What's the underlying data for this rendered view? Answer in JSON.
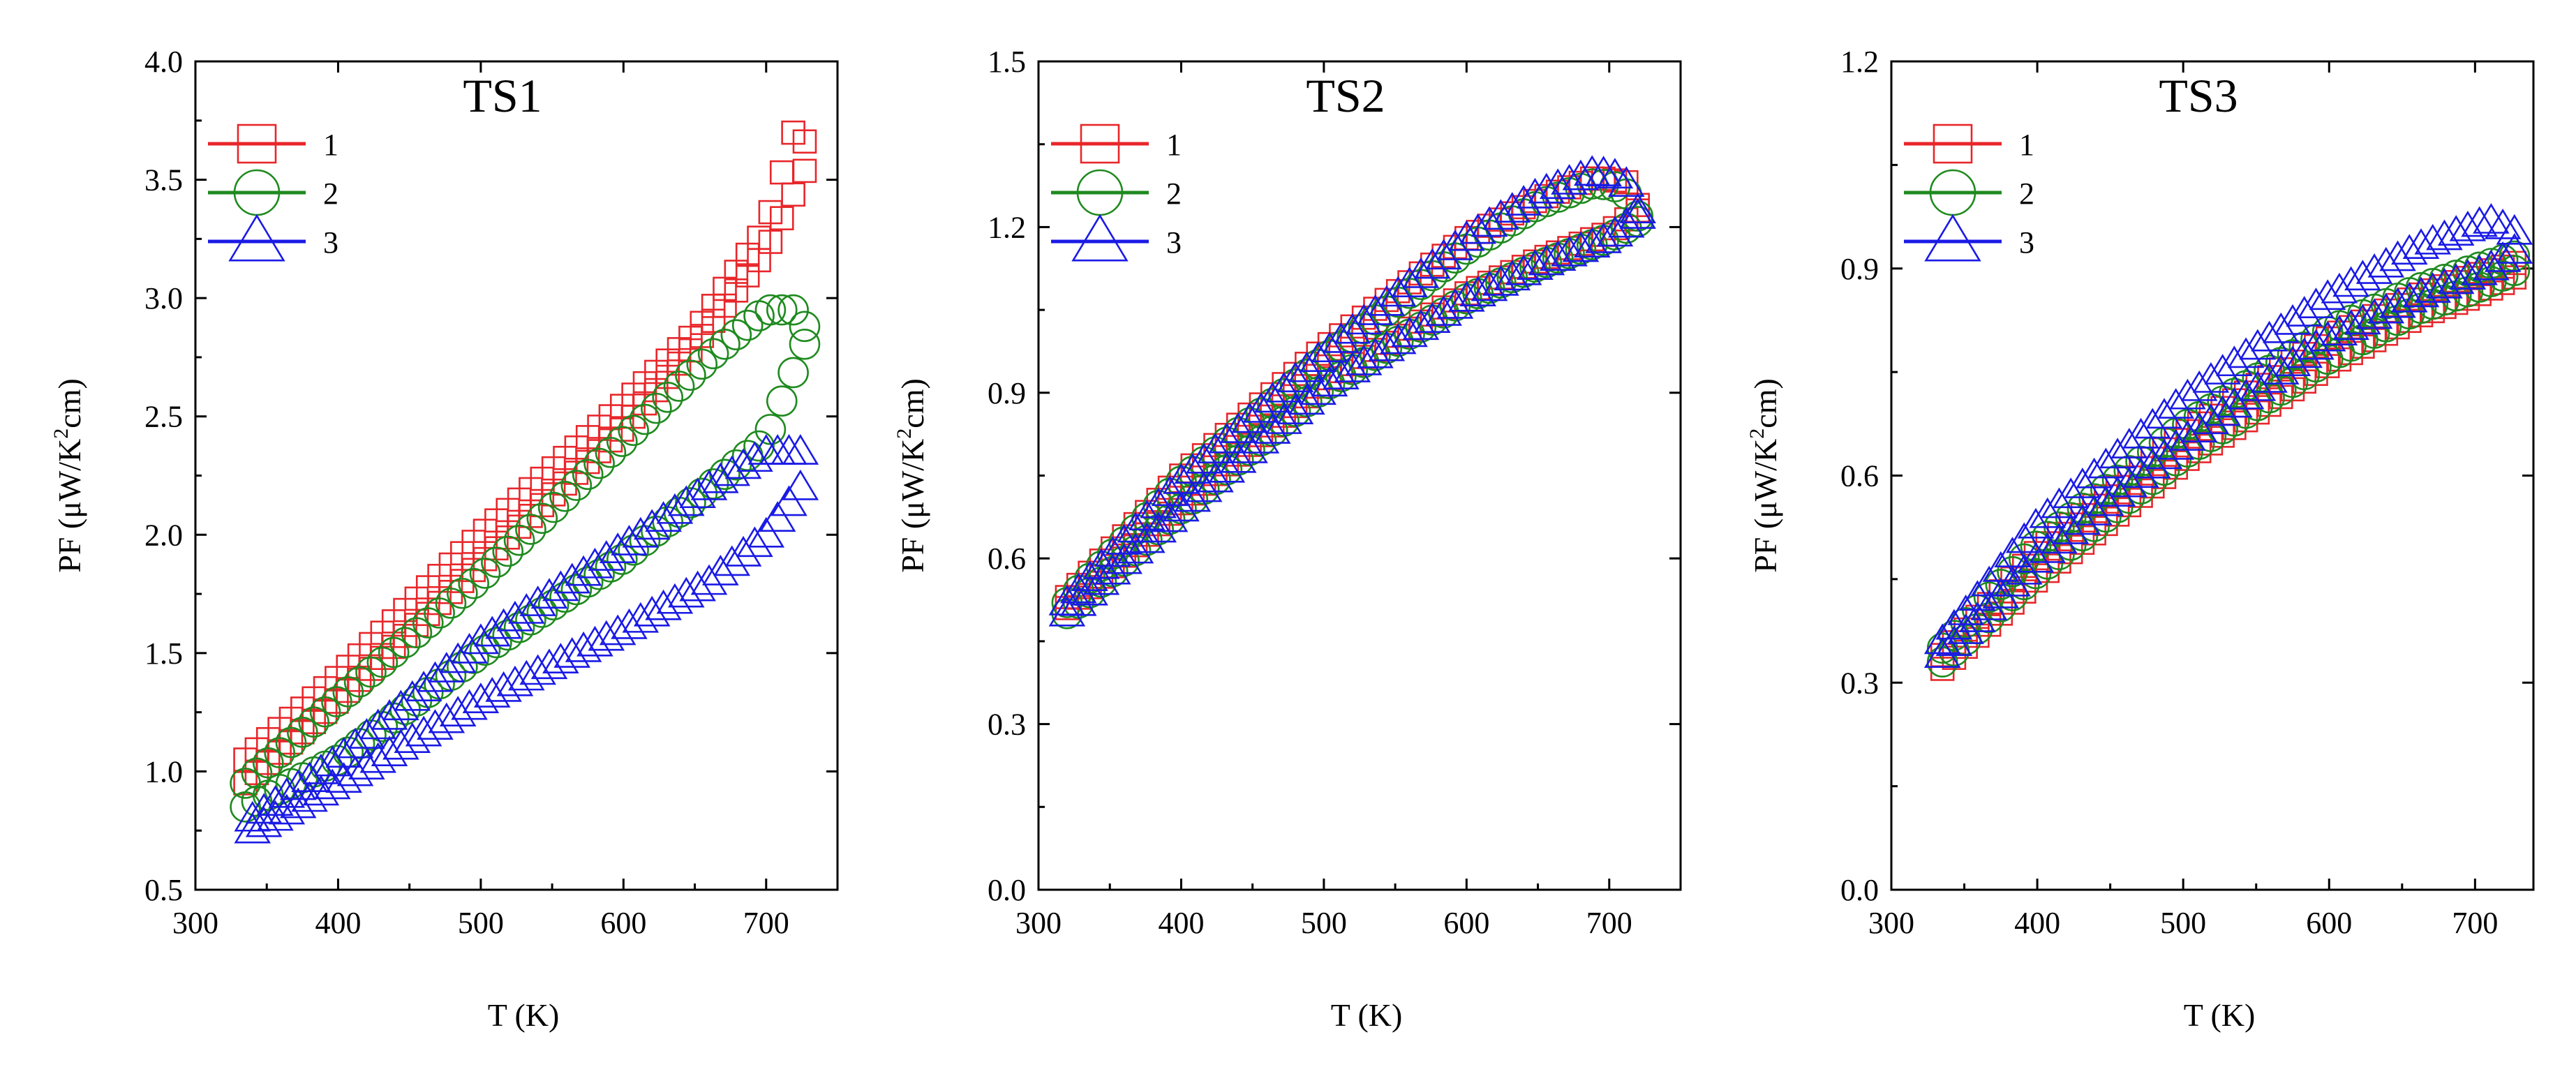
{
  "chart_data": [
    {
      "type": "scatter",
      "title": "TS1",
      "xlabel": "T (K)",
      "ylabel": "PF (μW/K²cm)",
      "ylabel_parts": [
        "PF (μW/K",
        "2",
        "cm)"
      ],
      "xlim": [
        300,
        750
      ],
      "ylim": [
        0.5,
        4.0
      ],
      "xticks": [
        300,
        400,
        500,
        600,
        700
      ],
      "yticks": [
        0.5,
        1.0,
        1.5,
        2.0,
        2.5,
        3.0,
        3.5,
        4.0
      ],
      "ytick_labels": [
        "0.5",
        "1.0",
        "1.5",
        "2.0",
        "2.5",
        "3.0",
        "3.5",
        "4.0"
      ],
      "xtick_labels": [
        "300",
        "400",
        "500",
        "600",
        "700"
      ],
      "legend_location": "top-left",
      "series": [
        {
          "name": "1",
          "marker": "square",
          "color": "#e8262a",
          "upper": [
            [
              335,
              1.05
            ],
            [
              400,
              1.4
            ],
            [
              500,
              2.0
            ],
            [
              600,
              2.55
            ],
            [
              650,
              2.85
            ],
            [
              700,
              3.3
            ],
            [
              720,
              3.72
            ],
            [
              732,
              3.62
            ]
          ],
          "lower": [
            [
              335,
              0.95
            ],
            [
              400,
              1.3
            ],
            [
              500,
              1.88
            ],
            [
              600,
              2.45
            ],
            [
              650,
              2.8
            ],
            [
              700,
              3.2
            ],
            [
              732,
              3.6
            ]
          ]
        },
        {
          "name": "2",
          "marker": "circle",
          "color": "#1f8a1f",
          "upper": [
            [
              335,
              0.95
            ],
            [
              400,
              1.3
            ],
            [
              500,
              1.82
            ],
            [
              600,
              2.4
            ],
            [
              660,
              2.75
            ],
            [
              700,
              2.95
            ],
            [
              720,
              2.95
            ],
            [
              730,
              2.85
            ]
          ],
          "lower": [
            [
              335,
              0.85
            ],
            [
              400,
              1.05
            ],
            [
              500,
              1.5
            ],
            [
              600,
              1.9
            ],
            [
              660,
              2.2
            ],
            [
              700,
              2.4
            ],
            [
              730,
              2.85
            ]
          ]
        },
        {
          "name": "3",
          "marker": "triangle",
          "color": "#1a1ae6",
          "upper": [
            [
              340,
              0.8
            ],
            [
              400,
              1.05
            ],
            [
              500,
              1.55
            ],
            [
              600,
              1.95
            ],
            [
              660,
              2.2
            ],
            [
              700,
              2.35
            ],
            [
              725,
              2.35
            ],
            [
              730,
              2.25
            ]
          ],
          "lower": [
            [
              340,
              0.75
            ],
            [
              400,
              0.95
            ],
            [
              500,
              1.3
            ],
            [
              600,
              1.6
            ],
            [
              660,
              1.8
            ],
            [
              700,
              2.0
            ],
            [
              730,
              2.25
            ]
          ]
        }
      ]
    },
    {
      "type": "scatter",
      "title": "TS2",
      "xlabel": "T (K)",
      "ylabel": "PF (μW/K²cm)",
      "ylabel_parts": [
        "PF (μW/K",
        "2",
        "cm)"
      ],
      "xlim": [
        300,
        750
      ],
      "ylim": [
        0.0,
        1.5
      ],
      "xticks": [
        300,
        400,
        500,
        600,
        700
      ],
      "yticks": [
        0.0,
        0.3,
        0.6,
        0.9,
        1.2,
        1.5
      ],
      "ytick_labels": [
        "0.0",
        "0.3",
        "0.6",
        "0.9",
        "1.2",
        "1.5"
      ],
      "xtick_labels": [
        "300",
        "400",
        "500",
        "600",
        "700"
      ],
      "legend_location": "top-left",
      "series": [
        {
          "name": "1",
          "marker": "square",
          "color": "#e8262a",
          "upper": [
            [
              320,
              0.53
            ],
            [
              400,
              0.75
            ],
            [
              500,
              0.98
            ],
            [
              600,
              1.18
            ],
            [
              650,
              1.25
            ],
            [
              690,
              1.29
            ],
            [
              715,
              1.28
            ],
            [
              720,
              1.24
            ]
          ],
          "lower": [
            [
              320,
              0.51
            ],
            [
              400,
              0.7
            ],
            [
              500,
              0.92
            ],
            [
              600,
              1.08
            ],
            [
              650,
              1.14
            ],
            [
              700,
              1.19
            ],
            [
              720,
              1.23
            ]
          ]
        },
        {
          "name": "2",
          "marker": "circle",
          "color": "#1f8a1f",
          "upper": [
            [
              320,
              0.52
            ],
            [
              400,
              0.74
            ],
            [
              500,
              0.96
            ],
            [
              600,
              1.16
            ],
            [
              650,
              1.24
            ],
            [
              690,
              1.28
            ],
            [
              710,
              1.27
            ],
            [
              720,
              1.22
            ]
          ],
          "lower": [
            [
              320,
              0.5
            ],
            [
              400,
              0.69
            ],
            [
              500,
              0.91
            ],
            [
              600,
              1.07
            ],
            [
              650,
              1.13
            ],
            [
              700,
              1.18
            ],
            [
              720,
              1.21
            ]
          ]
        },
        {
          "name": "3",
          "marker": "triangle",
          "color": "#1a1ae6",
          "upper": [
            [
              320,
              0.52
            ],
            [
              400,
              0.74
            ],
            [
              500,
              0.97
            ],
            [
              600,
              1.18
            ],
            [
              650,
              1.26
            ],
            [
              690,
              1.3
            ],
            [
              710,
              1.29
            ],
            [
              720,
              1.23
            ]
          ],
          "lower": [
            [
              320,
              0.5
            ],
            [
              400,
              0.69
            ],
            [
              500,
              0.91
            ],
            [
              600,
              1.07
            ],
            [
              650,
              1.13
            ],
            [
              700,
              1.18
            ],
            [
              720,
              1.22
            ]
          ]
        }
      ]
    },
    {
      "type": "scatter",
      "title": "TS3",
      "xlabel": "T (K)",
      "ylabel": "PF (μW/K²cm)",
      "ylabel_parts": [
        "PF (μW/K",
        "2",
        "cm)"
      ],
      "xlim": [
        300,
        740
      ],
      "ylim": [
        0.0,
        1.2
      ],
      "xticks": [
        300,
        400,
        500,
        600,
        700
      ],
      "yticks": [
        0.0,
        0.3,
        0.6,
        0.9,
        1.2
      ],
      "ytick_labels": [
        "0.0",
        "0.3",
        "0.6",
        "0.9",
        "1.2"
      ],
      "xtick_labels": [
        "300",
        "400",
        "500",
        "600",
        "700"
      ],
      "legend_location": "top-left",
      "series": [
        {
          "name": "1",
          "marker": "square",
          "color": "#e8262a",
          "upper": [
            [
              335,
              0.34
            ],
            [
              400,
              0.49
            ],
            [
              500,
              0.66
            ],
            [
              600,
              0.8
            ],
            [
              660,
              0.86
            ],
            [
              700,
              0.89
            ],
            [
              730,
              0.91
            ]
          ],
          "lower": [
            [
              335,
              0.32
            ],
            [
              400,
              0.45
            ],
            [
              500,
              0.62
            ],
            [
              600,
              0.76
            ],
            [
              660,
              0.83
            ],
            [
              700,
              0.86
            ],
            [
              730,
              0.89
            ]
          ]
        },
        {
          "name": "2",
          "marker": "circle",
          "color": "#1f8a1f",
          "upper": [
            [
              335,
              0.35
            ],
            [
              400,
              0.5
            ],
            [
              500,
              0.67
            ],
            [
              600,
              0.81
            ],
            [
              660,
              0.87
            ],
            [
              700,
              0.9
            ],
            [
              730,
              0.92
            ]
          ],
          "lower": [
            [
              335,
              0.33
            ],
            [
              400,
              0.46
            ],
            [
              500,
              0.63
            ],
            [
              600,
              0.77
            ],
            [
              660,
              0.84
            ],
            [
              700,
              0.87
            ],
            [
              730,
              0.9
            ]
          ]
        },
        {
          "name": "3",
          "marker": "triangle",
          "color": "#1a1ae6",
          "upper": [
            [
              335,
              0.36
            ],
            [
              400,
              0.53
            ],
            [
              500,
              0.71
            ],
            [
              600,
              0.86
            ],
            [
              660,
              0.93
            ],
            [
              710,
              0.97
            ],
            [
              730,
              0.95
            ]
          ],
          "lower": [
            [
              335,
              0.34
            ],
            [
              400,
              0.48
            ],
            [
              500,
              0.65
            ],
            [
              600,
              0.8
            ],
            [
              660,
              0.86
            ],
            [
              710,
              0.9
            ],
            [
              730,
              0.93
            ]
          ]
        }
      ]
    }
  ]
}
